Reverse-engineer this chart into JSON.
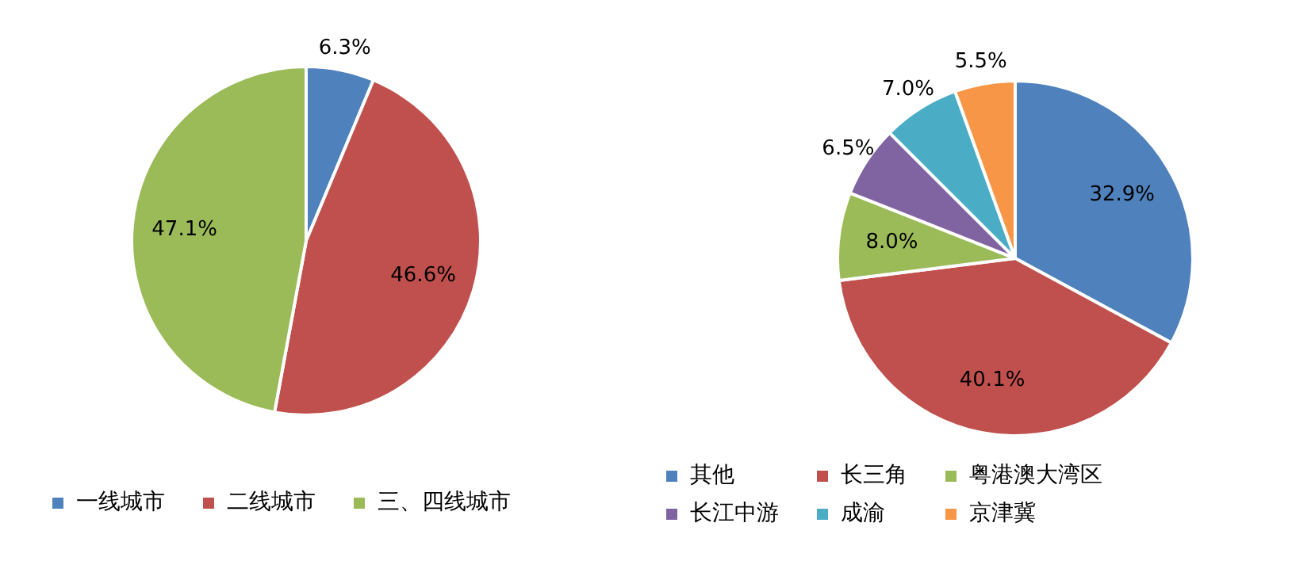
{
  "chart_data": [
    {
      "type": "pie",
      "categories": [
        "一线城市",
        "二线城市",
        "三、四线城市"
      ],
      "values": [
        6.3,
        46.6,
        47.1
      ],
      "colors": [
        "#4f81bd",
        "#c0504d",
        "#9bbb59"
      ],
      "value_labels": [
        "6.3%",
        "46.6%",
        "47.1%"
      ],
      "legend": "bottom"
    },
    {
      "type": "pie",
      "categories": [
        "其他",
        "长三角",
        "粤港澳大湾区",
        "长江中游",
        "成渝",
        "京津冀"
      ],
      "values": [
        32.9,
        40.1,
        8.0,
        6.5,
        7.0,
        5.5
      ],
      "colors": [
        "#4f81bd",
        "#c0504d",
        "#9bbb59",
        "#8064a2",
        "#4bacc6",
        "#f79646"
      ],
      "value_labels": [
        "32.9%",
        "40.1%",
        "8.0%",
        "6.5%",
        "7.0%",
        "5.5%"
      ],
      "legend": "bottom"
    }
  ]
}
